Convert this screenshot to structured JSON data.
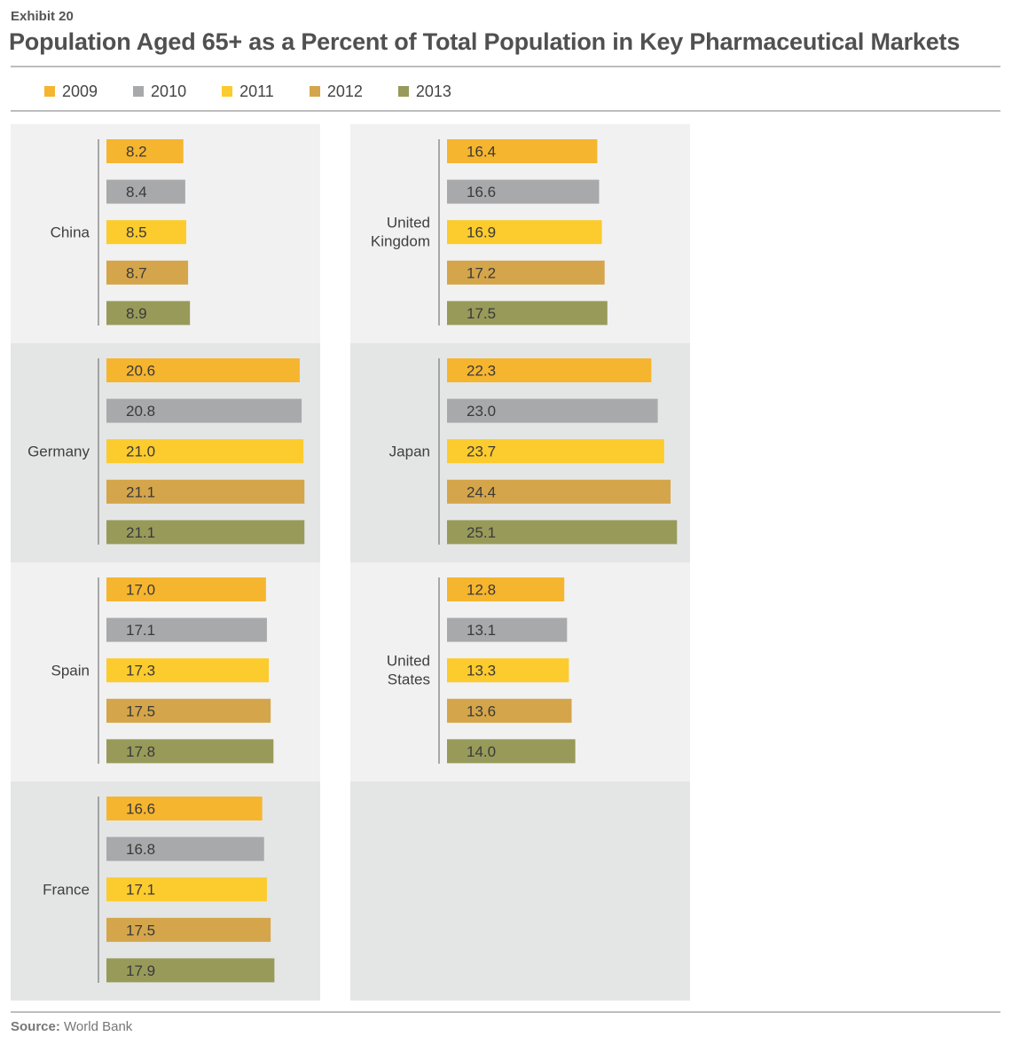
{
  "header": {
    "exhibit": "Exhibit 20",
    "title": "Population Aged 65+ as a Percent of Total Population in Key Pharmaceutical Markets"
  },
  "legend": [
    {
      "label": "2009",
      "color": "#f6b52f"
    },
    {
      "label": "2010",
      "color": "#a7a9ab"
    },
    {
      "label": "2011",
      "color": "#fccb2d"
    },
    {
      "label": "2012",
      "color": "#d4a54a"
    },
    {
      "label": "2013",
      "color": "#989a5a"
    }
  ],
  "chart_data": {
    "type": "bar",
    "orientation": "horizontal",
    "series_names": [
      "2009",
      "2010",
      "2011",
      "2012",
      "2013"
    ],
    "colors": [
      "#f6b52f",
      "#a7a9ab",
      "#fccb2d",
      "#d4a54a",
      "#989a5a"
    ],
    "panels": [
      {
        "label": "China",
        "values": [
          "8.2",
          "8.4",
          "8.5",
          "8.7",
          "8.9"
        ]
      },
      {
        "label": "Germany",
        "values": [
          "20.6",
          "20.8",
          "21.0",
          "21.1",
          "21.1"
        ]
      },
      {
        "label": "Spain",
        "values": [
          "17.0",
          "17.1",
          "17.3",
          "17.5",
          "17.8"
        ]
      },
      {
        "label": "France",
        "values": [
          "16.6",
          "16.8",
          "17.1",
          "17.5",
          "17.9"
        ]
      },
      {
        "label": "United Kingdom",
        "values": [
          "16.4",
          "16.6",
          "16.9",
          "17.2",
          "17.5"
        ]
      },
      {
        "label": "Japan",
        "values": [
          "22.3",
          "23.0",
          "23.7",
          "24.4",
          "25.1"
        ]
      },
      {
        "label": "United States",
        "values": [
          "12.8",
          "13.1",
          "13.3",
          "13.6",
          "14.0"
        ]
      }
    ]
  },
  "source": {
    "prefix": "Source:",
    "text": "World Bank"
  }
}
